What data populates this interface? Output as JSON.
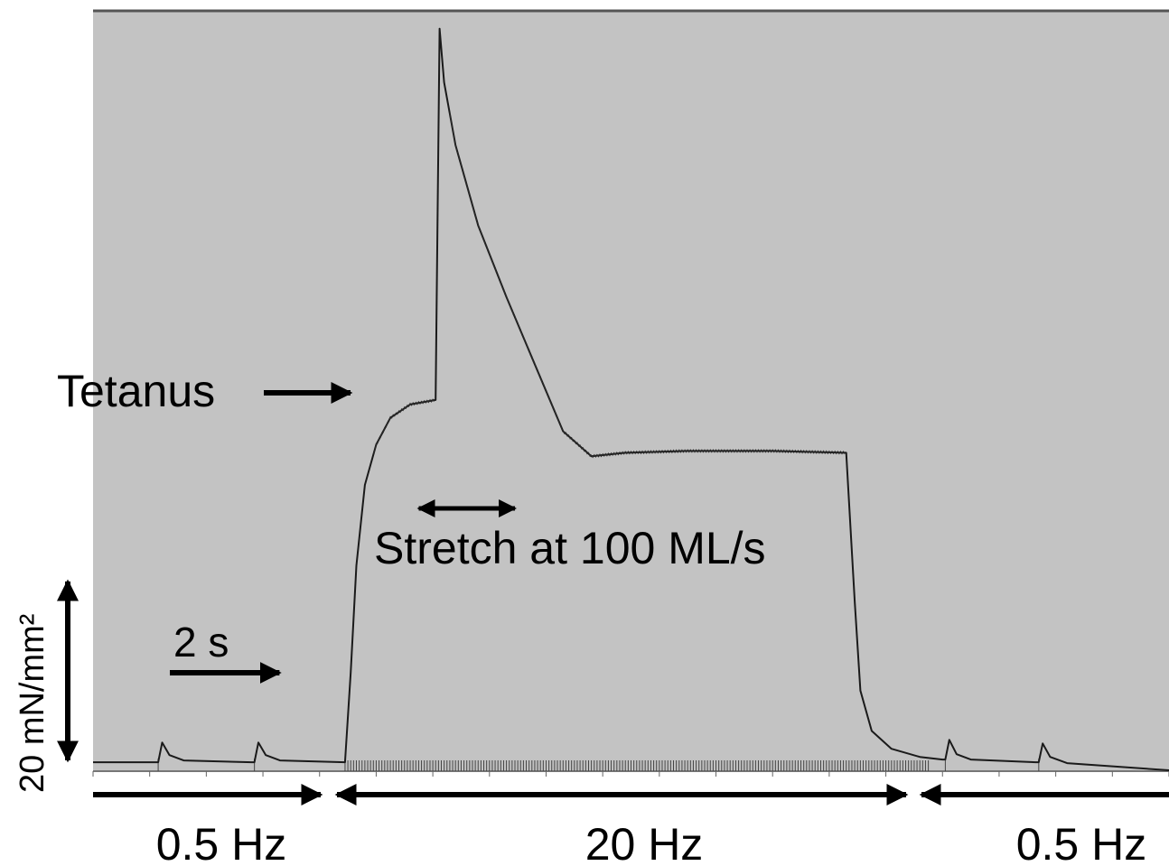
{
  "chart_data": {
    "type": "line",
    "title": "",
    "xlabel": "",
    "ylabel": "",
    "grid": false,
    "x_unit": "s",
    "y_unit": "mN/mm²",
    "xlim": [
      0,
      19
    ],
    "ylim": [
      -1,
      84
    ],
    "series": [
      {
        "name": "",
        "points": [
          [
            0.0,
            0.0
          ],
          [
            1.15,
            0.0
          ],
          [
            1.22,
            2.2
          ],
          [
            1.35,
            0.8
          ],
          [
            1.6,
            0.2
          ],
          [
            2.8,
            0.0
          ],
          [
            2.85,
            0.0
          ],
          [
            2.92,
            2.2
          ],
          [
            3.05,
            0.8
          ],
          [
            3.3,
            0.2
          ],
          [
            4.45,
            0.0
          ],
          [
            4.55,
            10.0
          ],
          [
            4.65,
            22.0
          ],
          [
            4.8,
            31.0
          ],
          [
            5.0,
            35.5
          ],
          [
            5.25,
            38.5
          ],
          [
            5.6,
            40.0
          ],
          [
            6.05,
            40.5
          ],
          [
            6.12,
            82.0
          ],
          [
            6.2,
            76.0
          ],
          [
            6.4,
            69.0
          ],
          [
            6.8,
            60.0
          ],
          [
            7.3,
            52.0
          ],
          [
            7.8,
            44.5
          ],
          [
            8.3,
            37.0
          ],
          [
            8.8,
            34.2
          ],
          [
            9.4,
            34.6
          ],
          [
            10.5,
            34.8
          ],
          [
            12.0,
            34.8
          ],
          [
            13.3,
            34.6
          ],
          [
            13.45,
            18.0
          ],
          [
            13.55,
            8.0
          ],
          [
            13.75,
            3.5
          ],
          [
            14.1,
            1.5
          ],
          [
            14.6,
            0.6
          ],
          [
            15.0,
            0.3
          ],
          [
            15.05,
            0.3
          ],
          [
            15.12,
            2.5
          ],
          [
            15.25,
            0.9
          ],
          [
            15.5,
            0.3
          ],
          [
            16.65,
            0.0
          ],
          [
            16.7,
            0.0
          ],
          [
            16.77,
            2.1
          ],
          [
            16.9,
            0.6
          ],
          [
            17.2,
            -0.1
          ],
          [
            19.0,
            -0.9
          ]
        ]
      }
    ],
    "stimulus_periods": [
      {
        "label": "0.5 Hz",
        "start": 0.0,
        "end": 4.2
      },
      {
        "label": "20 Hz",
        "start": 4.45,
        "end": 14.8
      },
      {
        "label": "0.5 Hz",
        "start": 15.1,
        "end": 19.0
      }
    ],
    "annotations": {
      "tetanus": "Tetanus",
      "stretch": "Stretch at 100 ML/s",
      "stretch_start": 6.15,
      "stretch_end": 7.85,
      "time_scale": "2 s",
      "time_scale_value": 2,
      "force_scale": "20 mN/mm²",
      "force_scale_value": 20
    },
    "colors": {
      "background": "#c3c3c3",
      "trace": "#1a1a1a"
    }
  }
}
